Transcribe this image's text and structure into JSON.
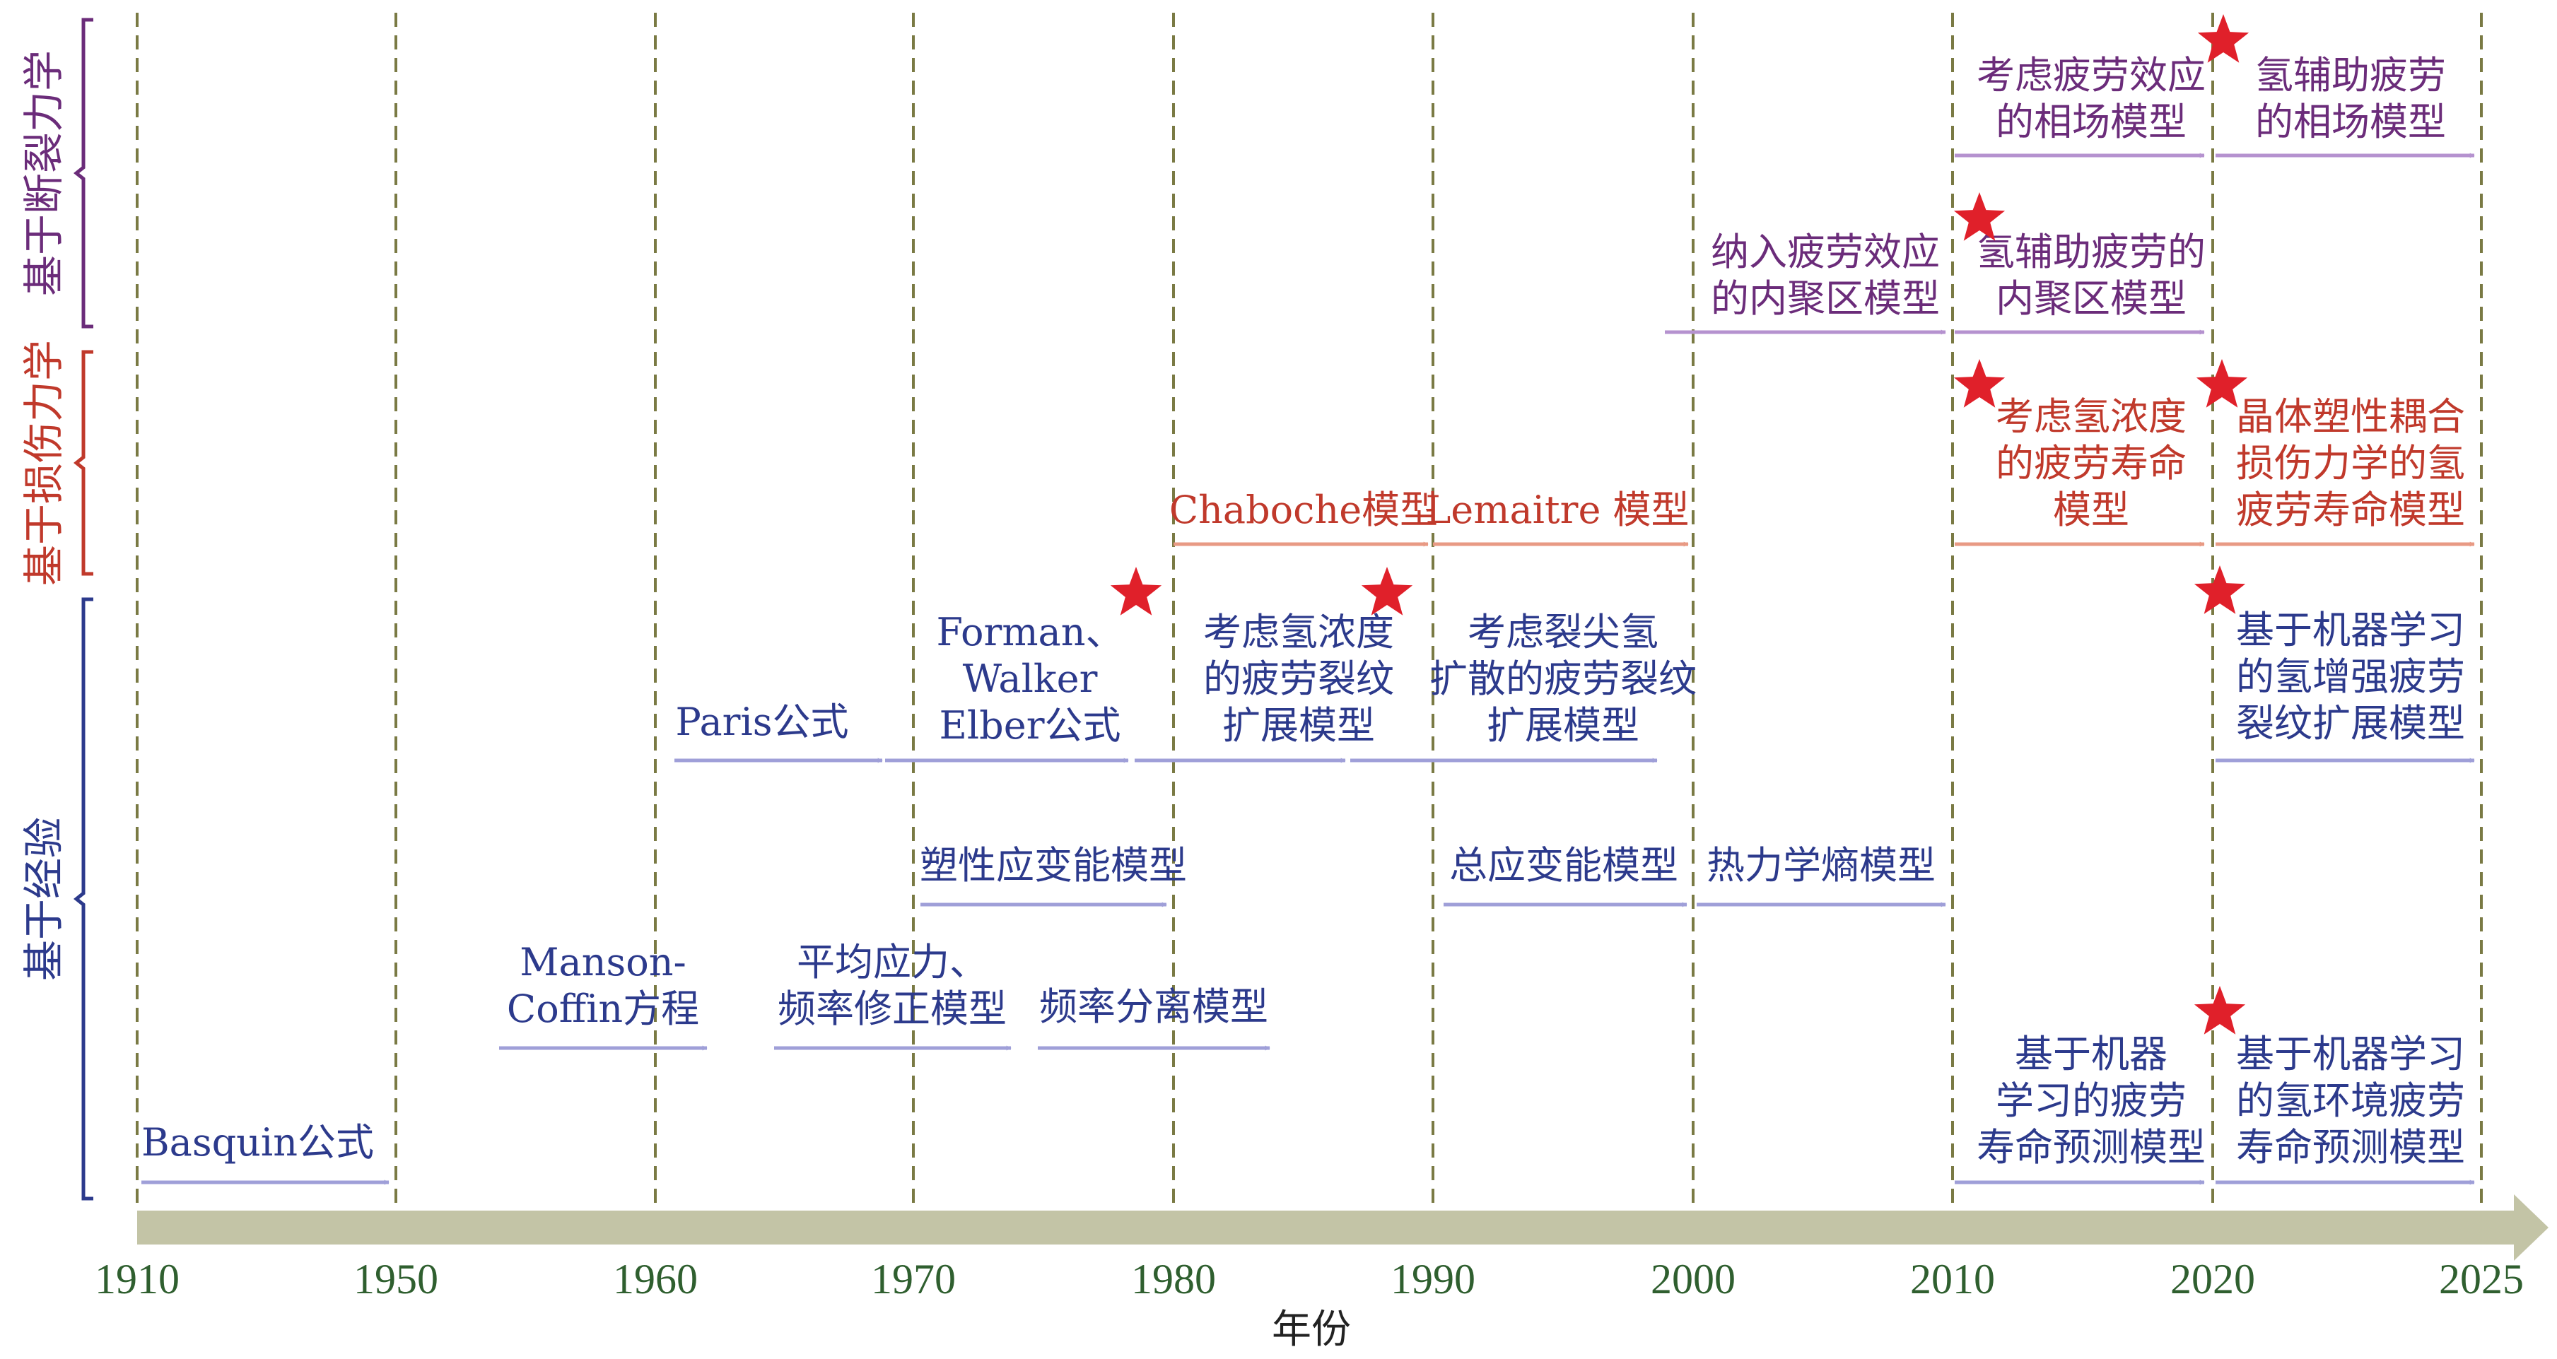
{
  "colors": {
    "empirical": "#2c3a8c",
    "damage": "#c0392b",
    "fracture": "#6b2c7a",
    "empirical_arrow": "#9f9fd8",
    "damage_arrow": "#e89a84",
    "fracture_arrow": "#b592cf",
    "gridline": "#7a7a44",
    "axis_bar": "#c3c4a6",
    "tick_text": "#2f5f2f",
    "star": "#e0202a",
    "axis_title": "#222222"
  },
  "axis": {
    "title": "年份",
    "ticks": [
      1910,
      1950,
      1960,
      1970,
      1980,
      1990,
      2000,
      2010,
      2020,
      2025
    ]
  },
  "categories": [
    {
      "id": "fracture",
      "label": "基于断裂力学"
    },
    {
      "id": "damage",
      "label": "基于损伤力学"
    },
    {
      "id": "empirical",
      "label": "基于经验"
    }
  ],
  "models": [
    {
      "id": "basquin",
      "lines": [
        "Basquin公式"
      ],
      "category": "empirical",
      "start": 1910,
      "end": 1950,
      "star": false
    },
    {
      "id": "manson-coffin",
      "lines": [
        "Manson-",
        "Coffin方程"
      ],
      "category": "empirical",
      "start": 1954,
      "end": 1962,
      "star": false
    },
    {
      "id": "mean-stress",
      "lines": [
        "平均应力、",
        "频率修正模型"
      ],
      "category": "empirical",
      "start": 1964,
      "end": 1974,
      "star": false
    },
    {
      "id": "freq-separation",
      "lines": [
        "频率分离模型"
      ],
      "category": "empirical",
      "start": 1974,
      "end": 1984,
      "star": false
    },
    {
      "id": "plastic-strain-energy",
      "lines": [
        "塑性应变能模型"
      ],
      "category": "empirical",
      "start": 1970,
      "end": 1980,
      "star": false
    },
    {
      "id": "total-strain-energy",
      "lines": [
        "总应变能模型"
      ],
      "category": "empirical",
      "start": 1990,
      "end": 2000,
      "star": false
    },
    {
      "id": "thermo-entropy",
      "lines": [
        "热力学熵模型"
      ],
      "category": "empirical",
      "start": 2000,
      "end": 2010,
      "star": false
    },
    {
      "id": "paris",
      "lines": [
        "Paris公式"
      ],
      "category": "empirical",
      "start": 1960,
      "end": 1968,
      "star": false
    },
    {
      "id": "forman-walker-elber",
      "lines": [
        "Forman、",
        "Walker",
        "Elber公式"
      ],
      "category": "empirical",
      "start": 1968,
      "end": 1978,
      "star": true
    },
    {
      "id": "h-conc-crack-growth",
      "lines": [
        "考虑氢浓度",
        "的疲劳裂纹",
        "扩展模型"
      ],
      "category": "empirical",
      "start": 1978,
      "end": 1986,
      "star": true
    },
    {
      "id": "crack-tip-h-diffusion",
      "lines": [
        "考虑裂尖氢",
        "扩散的疲劳裂纹",
        "扩展模型"
      ],
      "category": "empirical",
      "start": 1986,
      "end": 1998,
      "star": false
    },
    {
      "id": "ml-fatigue-life",
      "lines": [
        "基于机器",
        "学习的疲劳",
        "寿命预测模型"
      ],
      "category": "empirical",
      "start": 2010,
      "end": 2020,
      "star": false
    },
    {
      "id": "ml-h-env-life",
      "lines": [
        "基于机器学习",
        "的氢环境疲劳",
        "寿命预测模型"
      ],
      "category": "empirical",
      "start": 2020,
      "end": 2025,
      "star": true
    },
    {
      "id": "ml-h-crack-growth",
      "lines": [
        "基于机器学习",
        "的氢增强疲劳",
        "裂纹扩展模型"
      ],
      "category": "empirical",
      "start": 2020,
      "end": 2025,
      "star": true
    },
    {
      "id": "chaboche",
      "lines": [
        "Chaboche模型"
      ],
      "category": "damage",
      "start": 1980,
      "end": 1990,
      "star": false
    },
    {
      "id": "lemaitre",
      "lines": [
        "Lemaitre 模型"
      ],
      "category": "damage",
      "start": 1990,
      "end": 2000,
      "star": false
    },
    {
      "id": "h-conc-fatigue-life",
      "lines": [
        "考虑氢浓度",
        "的疲劳寿命",
        "模型"
      ],
      "category": "damage",
      "start": 2010,
      "end": 2020,
      "star": true
    },
    {
      "id": "crystal-plasticity",
      "lines": [
        "晶体塑性耦合",
        "损伤力学的氢",
        "疲劳寿命模型"
      ],
      "category": "damage",
      "start": 2020,
      "end": 2025,
      "star": true
    },
    {
      "id": "cohesive-zone-fatigue",
      "lines": [
        "纳入疲劳效应",
        "的内聚区模型"
      ],
      "category": "fracture",
      "start": 1999,
      "end": 2010,
      "star": false
    },
    {
      "id": "h-cohesive-zone",
      "lines": [
        "氢辅助疲劳的",
        "内聚区模型"
      ],
      "category": "fracture",
      "start": 2010,
      "end": 2020,
      "star": true
    },
    {
      "id": "phase-field-fatigue",
      "lines": [
        "考虑疲劳效应",
        "的相场模型"
      ],
      "category": "fracture",
      "start": 2010,
      "end": 2020,
      "star": false
    },
    {
      "id": "h-phase-field",
      "lines": [
        "氢辅助疲劳",
        "的相场模型"
      ],
      "category": "fracture",
      "start": 2020,
      "end": 2025,
      "star": true
    }
  ]
}
